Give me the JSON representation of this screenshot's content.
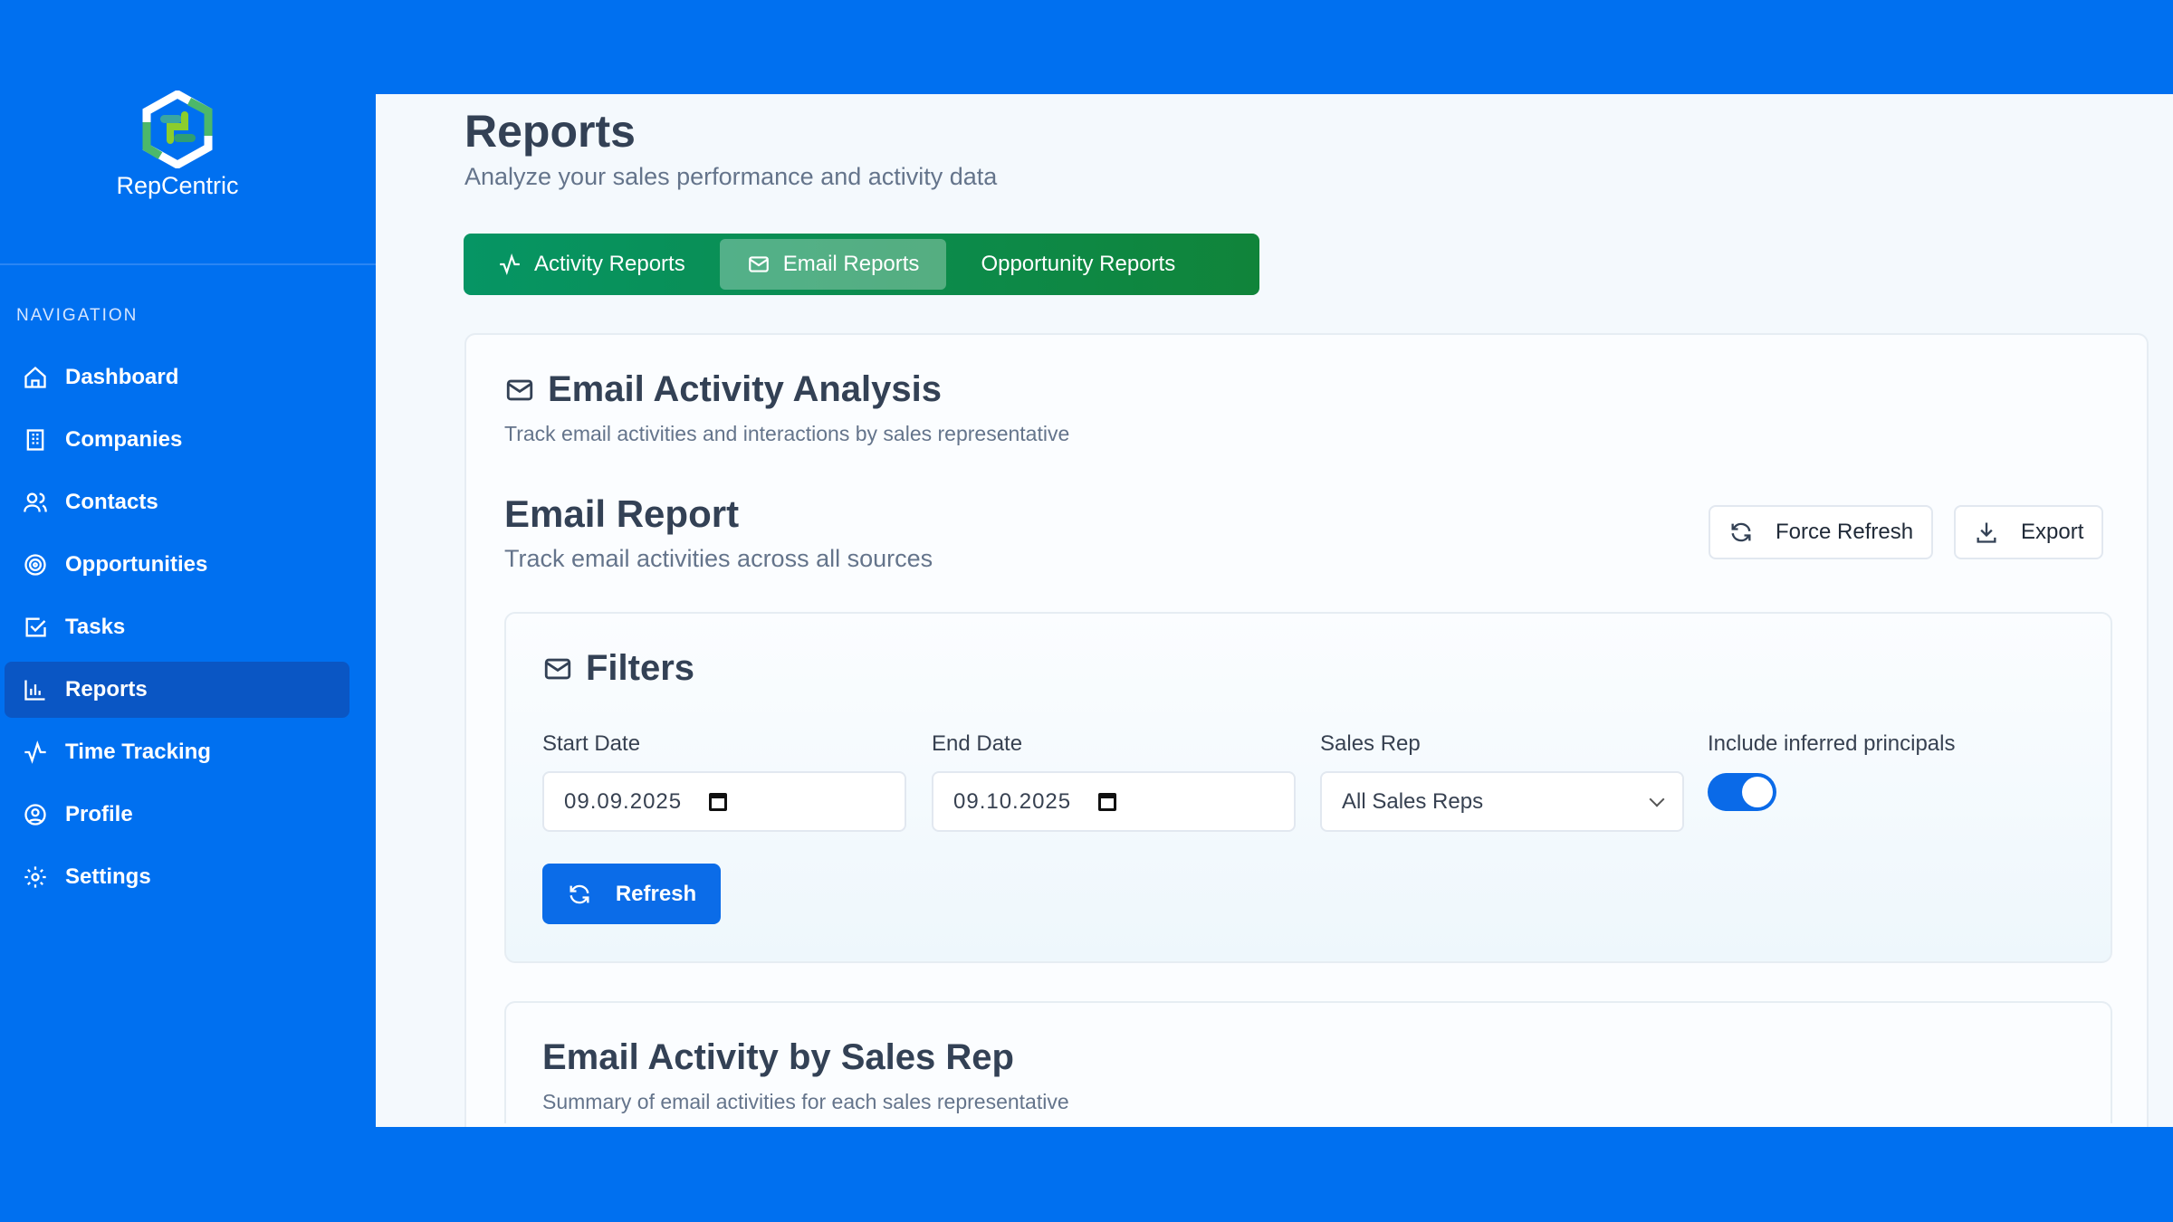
{
  "brand": {
    "name": "RepCentric"
  },
  "sidebar": {
    "section_label": "NAVIGATION",
    "items": [
      {
        "label": "Dashboard",
        "icon": "home-icon"
      },
      {
        "label": "Companies",
        "icon": "building-icon"
      },
      {
        "label": "Contacts",
        "icon": "users-icon"
      },
      {
        "label": "Opportunities",
        "icon": "target-icon"
      },
      {
        "label": "Tasks",
        "icon": "check-square-icon"
      },
      {
        "label": "Reports",
        "icon": "bar-chart-icon",
        "active": true
      },
      {
        "label": "Time Tracking",
        "icon": "activity-icon"
      },
      {
        "label": "Profile",
        "icon": "user-circle-icon"
      },
      {
        "label": "Settings",
        "icon": "gear-icon"
      }
    ]
  },
  "page": {
    "title": "Reports",
    "subtitle": "Analyze your sales performance and activity data"
  },
  "tabs": [
    {
      "label": "Activity Reports"
    },
    {
      "label": "Email Reports",
      "active": true
    },
    {
      "label": "Opportunity Reports"
    }
  ],
  "card": {
    "title": "Email Activity Analysis",
    "subtitle": "Track email activities and interactions by sales representative",
    "report_title": "Email Report",
    "report_subtitle": "Track email activities across all sources",
    "force_refresh": "Force Refresh",
    "export": "Export"
  },
  "filters": {
    "title": "Filters",
    "start_label": "Start Date",
    "start_value": "09.09.2025",
    "end_label": "End Date",
    "end_value": "09.10.2025",
    "rep_label": "Sales Rep",
    "rep_value": "All Sales Reps",
    "inferred_label": "Include inferred principals",
    "inferred_on": true,
    "refresh": "Refresh"
  },
  "summary": {
    "title": "Email Activity by Sales Rep",
    "subtitle": "Summary of email activities for each sales representative"
  },
  "colors": {
    "primary": "#0070f0",
    "tab_green": "#069564",
    "accent": "#0b6ce8"
  }
}
